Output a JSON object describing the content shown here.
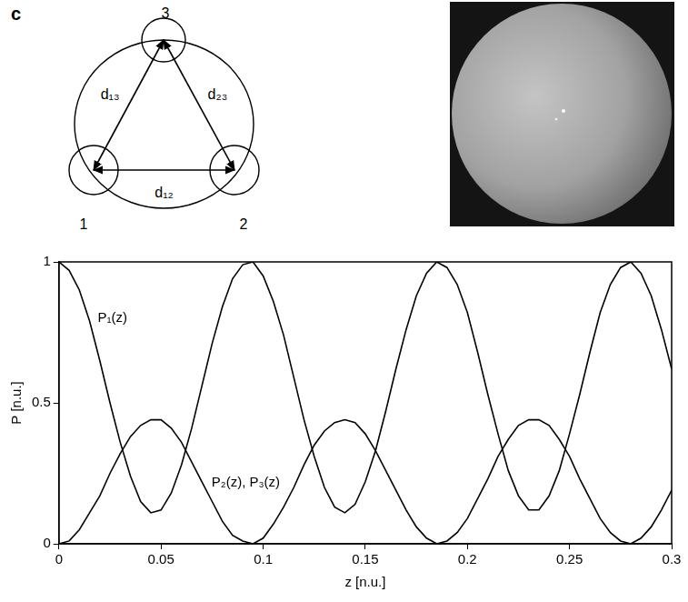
{
  "panel": "c",
  "diagram": {
    "nodes": [
      {
        "label": "1"
      },
      {
        "label": "2"
      },
      {
        "label": "3"
      }
    ],
    "edges": [
      {
        "from": "1",
        "to": "3",
        "label": "d₁₃"
      },
      {
        "from": "2",
        "to": "3",
        "label": "d₂₃"
      },
      {
        "from": "1",
        "to": "2",
        "label": "d₁₂"
      }
    ]
  },
  "chart_data": {
    "type": "line",
    "x_label": "z [n.u.]",
    "y_label": "P [n.u.]",
    "x": [
      0,
      0.005,
      0.01,
      0.015,
      0.02,
      0.025,
      0.03,
      0.035,
      0.04,
      0.045,
      0.05,
      0.055,
      0.06,
      0.065,
      0.07,
      0.075,
      0.08,
      0.085,
      0.09,
      0.095,
      0.1,
      0.105,
      0.11,
      0.115,
      0.12,
      0.125,
      0.13,
      0.135,
      0.14,
      0.145,
      0.15,
      0.155,
      0.16,
      0.165,
      0.17,
      0.175,
      0.18,
      0.185,
      0.19,
      0.195,
      0.2,
      0.205,
      0.21,
      0.215,
      0.22,
      0.225,
      0.23,
      0.235,
      0.24,
      0.245,
      0.25,
      0.255,
      0.26,
      0.265,
      0.27,
      0.275,
      0.28,
      0.285,
      0.29,
      0.295,
      0.3
    ],
    "series": [
      {
        "name": "P₁(z)",
        "color": "#000000",
        "values": [
          1,
          0.97,
          0.9,
          0.79,
          0.65,
          0.5,
          0.36,
          0.24,
          0.15,
          0.11,
          0.12,
          0.18,
          0.28,
          0.41,
          0.56,
          0.71,
          0.84,
          0.94,
          0.99,
          1,
          0.95,
          0.86,
          0.74,
          0.59,
          0.44,
          0.31,
          0.2,
          0.13,
          0.11,
          0.14,
          0.22,
          0.33,
          0.47,
          0.62,
          0.76,
          0.88,
          0.96,
          1,
          0.98,
          0.92,
          0.82,
          0.68,
          0.53,
          0.39,
          0.26,
          0.17,
          0.12,
          0.12,
          0.17,
          0.26,
          0.39,
          0.53,
          0.68,
          0.82,
          0.92,
          0.98,
          1,
          0.96,
          0.88,
          0.76,
          0.62
        ]
      },
      {
        "name": "P₂(z), P₃(z)",
        "color": "#000000",
        "values": [
          0,
          0.01,
          0.05,
          0.11,
          0.17,
          0.25,
          0.32,
          0.38,
          0.42,
          0.44,
          0.44,
          0.41,
          0.36,
          0.29,
          0.22,
          0.15,
          0.08,
          0.03,
          0.01,
          0,
          0.02,
          0.07,
          0.13,
          0.2,
          0.28,
          0.35,
          0.4,
          0.43,
          0.44,
          0.43,
          0.39,
          0.33,
          0.26,
          0.19,
          0.12,
          0.06,
          0.02,
          0,
          0.01,
          0.04,
          0.09,
          0.16,
          0.23,
          0.31,
          0.37,
          0.42,
          0.44,
          0.44,
          0.42,
          0.37,
          0.31,
          0.23,
          0.16,
          0.09,
          0.04,
          0.01,
          0,
          0.02,
          0.06,
          0.12,
          0.19
        ]
      }
    ],
    "xlim": [
      0,
      0.3
    ],
    "xticks": [
      0,
      0.05,
      0.1,
      0.15,
      0.2,
      0.25,
      0.3
    ],
    "ylim": [
      0,
      1
    ],
    "yticks": [
      0,
      0.5,
      1
    ],
    "grid": false
  }
}
